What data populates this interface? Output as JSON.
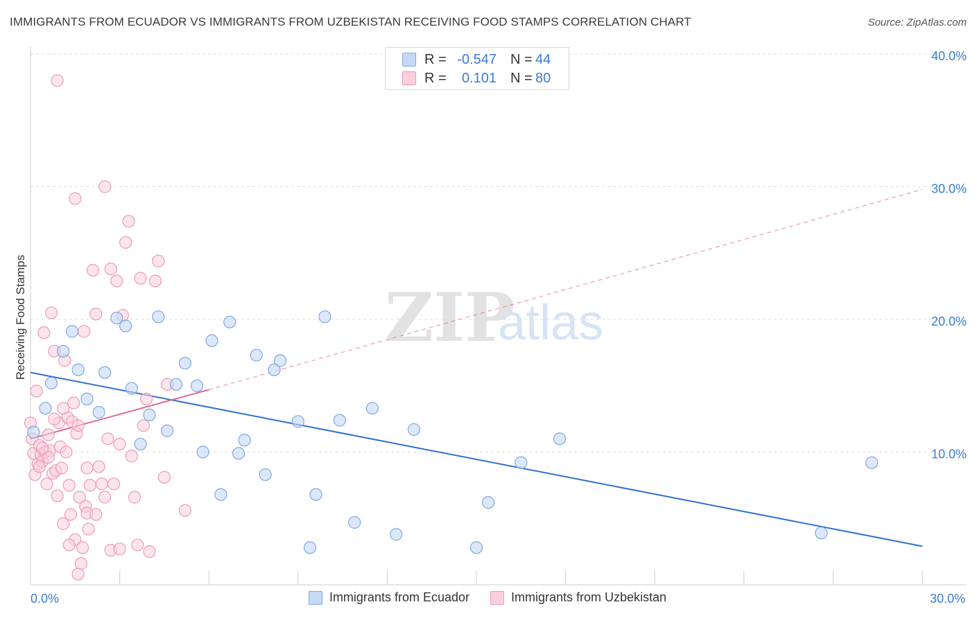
{
  "title": "IMMIGRANTS FROM ECUADOR VS IMMIGRANTS FROM UZBEKISTAN RECEIVING FOOD STAMPS CORRELATION CHART",
  "source": "Source: ZipAtlas.com",
  "watermark": {
    "zip": "ZIP",
    "atlas": "atlas"
  },
  "stats": {
    "ecuador": {
      "r_label": "R =",
      "r_value": "-0.547",
      "n_label": "N =",
      "n_value": "44"
    },
    "uzbekistan": {
      "r_label": "R =",
      "r_value": "0.101",
      "n_label": "N =",
      "n_value": "80"
    }
  },
  "colors": {
    "ecuador_fill": "#c5d9f5",
    "ecuador_stroke": "#7ea7e3",
    "ecuador_line": "#2f6fd0",
    "uzbekistan_fill": "#f9d0dc",
    "uzbekistan_stroke": "#ee9ab5",
    "uzbekistan_line": "#e06a94",
    "tick_label": "#3a7bd5",
    "grid": "#dddddd"
  },
  "chart_data": {
    "type": "scatter",
    "title": "IMMIGRANTS FROM ECUADOR VS IMMIGRANTS FROM UZBEKISTAN RECEIVING FOOD STAMPS CORRELATION CHART",
    "xlabel": "",
    "ylabel": "Receiving Food Stamps",
    "xlim": [
      0,
      30
    ],
    "ylim": [
      0,
      40
    ],
    "x_ticks": [
      {
        "value": 0,
        "label": "0.0%"
      },
      {
        "value": 30,
        "label": "30.0%"
      }
    ],
    "y_ticks": [
      {
        "value": 10,
        "label": "10.0%"
      },
      {
        "value": 20,
        "label": "20.0%"
      },
      {
        "value": 30,
        "label": "30.0%"
      },
      {
        "value": 40,
        "label": "40.0%"
      }
    ],
    "grid": true,
    "legend_position": "bottom-center",
    "series": [
      {
        "name": "Immigrants from Ecuador",
        "points": [
          [
            0.1,
            11.5
          ],
          [
            0.5,
            13.3
          ],
          [
            0.7,
            15.2
          ],
          [
            1.1,
            17.6
          ],
          [
            1.4,
            19.1
          ],
          [
            1.6,
            16.2
          ],
          [
            1.9,
            14.0
          ],
          [
            2.3,
            13.0
          ],
          [
            2.5,
            16.0
          ],
          [
            2.9,
            20.1
          ],
          [
            3.2,
            19.5
          ],
          [
            3.4,
            14.8
          ],
          [
            3.7,
            10.6
          ],
          [
            4.0,
            12.8
          ],
          [
            4.3,
            20.2
          ],
          [
            4.6,
            11.6
          ],
          [
            4.9,
            15.1
          ],
          [
            5.2,
            16.7
          ],
          [
            5.6,
            15.0
          ],
          [
            5.8,
            10.0
          ],
          [
            6.1,
            18.4
          ],
          [
            6.4,
            6.8
          ],
          [
            6.7,
            19.8
          ],
          [
            7.0,
            9.9
          ],
          [
            7.2,
            10.9
          ],
          [
            7.6,
            17.3
          ],
          [
            7.9,
            8.3
          ],
          [
            8.2,
            16.2
          ],
          [
            8.4,
            16.9
          ],
          [
            9.0,
            12.3
          ],
          [
            9.4,
            2.8
          ],
          [
            9.6,
            6.8
          ],
          [
            9.9,
            20.2
          ],
          [
            10.4,
            12.4
          ],
          [
            10.9,
            4.7
          ],
          [
            11.5,
            13.3
          ],
          [
            12.3,
            3.8
          ],
          [
            12.9,
            11.7
          ],
          [
            15.0,
            2.8
          ],
          [
            15.4,
            6.2
          ],
          [
            16.5,
            9.2
          ],
          [
            17.8,
            11.0
          ],
          [
            26.6,
            3.9
          ],
          [
            28.3,
            9.2
          ]
        ],
        "trend": {
          "x0": 0,
          "y0": 16.0,
          "x1": 30,
          "y1": 2.9,
          "style": "solid"
        }
      },
      {
        "name": "Immigrants from Uzbekistan",
        "points": [
          [
            0.0,
            12.2
          ],
          [
            0.05,
            11.0
          ],
          [
            0.1,
            9.9
          ],
          [
            0.15,
            8.3
          ],
          [
            0.2,
            14.6
          ],
          [
            0.25,
            9.1
          ],
          [
            0.3,
            10.5
          ],
          [
            0.35,
            9.8
          ],
          [
            0.4,
            9.3
          ],
          [
            0.45,
            19.0
          ],
          [
            0.5,
            10.0
          ],
          [
            0.55,
            7.6
          ],
          [
            0.6,
            11.3
          ],
          [
            0.65,
            10.1
          ],
          [
            0.7,
            20.5
          ],
          [
            0.75,
            8.4
          ],
          [
            0.8,
            17.6
          ],
          [
            0.85,
            8.6
          ],
          [
            0.9,
            6.7
          ],
          [
            0.95,
            12.2
          ],
          [
            1.0,
            10.4
          ],
          [
            1.05,
            8.8
          ],
          [
            1.1,
            4.6
          ],
          [
            1.15,
            16.9
          ],
          [
            1.2,
            10.0
          ],
          [
            1.25,
            12.6
          ],
          [
            1.3,
            7.5
          ],
          [
            1.35,
            5.3
          ],
          [
            1.4,
            12.3
          ],
          [
            1.45,
            13.7
          ],
          [
            1.5,
            3.4
          ],
          [
            1.55,
            11.4
          ],
          [
            1.6,
            12.0
          ],
          [
            1.65,
            6.6
          ],
          [
            1.7,
            1.6
          ],
          [
            1.75,
            2.8
          ],
          [
            1.8,
            19.1
          ],
          [
            1.85,
            5.9
          ],
          [
            1.9,
            5.4
          ],
          [
            1.95,
            4.2
          ],
          [
            2.0,
            7.5
          ],
          [
            2.1,
            23.7
          ],
          [
            2.2,
            20.4
          ],
          [
            2.3,
            8.9
          ],
          [
            2.4,
            7.6
          ],
          [
            2.5,
            6.6
          ],
          [
            2.6,
            11.0
          ],
          [
            2.7,
            23.8
          ],
          [
            2.8,
            7.6
          ],
          [
            2.9,
            22.9
          ],
          [
            3.0,
            10.6
          ],
          [
            3.1,
            20.3
          ],
          [
            3.2,
            25.8
          ],
          [
            3.3,
            27.4
          ],
          [
            3.4,
            9.7
          ],
          [
            3.5,
            6.6
          ],
          [
            3.6,
            3.0
          ],
          [
            3.7,
            23.1
          ],
          [
            3.8,
            12.0
          ],
          [
            3.9,
            14.0
          ],
          [
            4.0,
            2.5
          ],
          [
            4.2,
            22.9
          ],
          [
            4.3,
            24.4
          ],
          [
            4.5,
            8.1
          ],
          [
            4.6,
            15.1
          ],
          [
            5.2,
            5.6
          ],
          [
            0.9,
            38.0
          ],
          [
            1.5,
            29.1
          ],
          [
            2.5,
            30.0
          ],
          [
            1.1,
            13.3
          ],
          [
            0.6,
            9.6
          ],
          [
            0.3,
            8.9
          ],
          [
            2.7,
            2.6
          ],
          [
            1.3,
            3.0
          ],
          [
            0.8,
            12.5
          ],
          [
            1.6,
            0.8
          ],
          [
            2.2,
            5.3
          ],
          [
            0.4,
            10.3
          ],
          [
            1.9,
            8.8
          ],
          [
            3.0,
            2.7
          ]
        ],
        "trend": {
          "x0": 0,
          "y0": 11.0,
          "x1": 6.0,
          "y1": 14.7,
          "style": "solid",
          "extension": {
            "x1": 30,
            "y1": 29.8,
            "style": "dashed"
          }
        }
      }
    ]
  },
  "legend": {
    "ecuador": "Immigrants from Ecuador",
    "uzbekistan": "Immigrants from Uzbekistan"
  }
}
